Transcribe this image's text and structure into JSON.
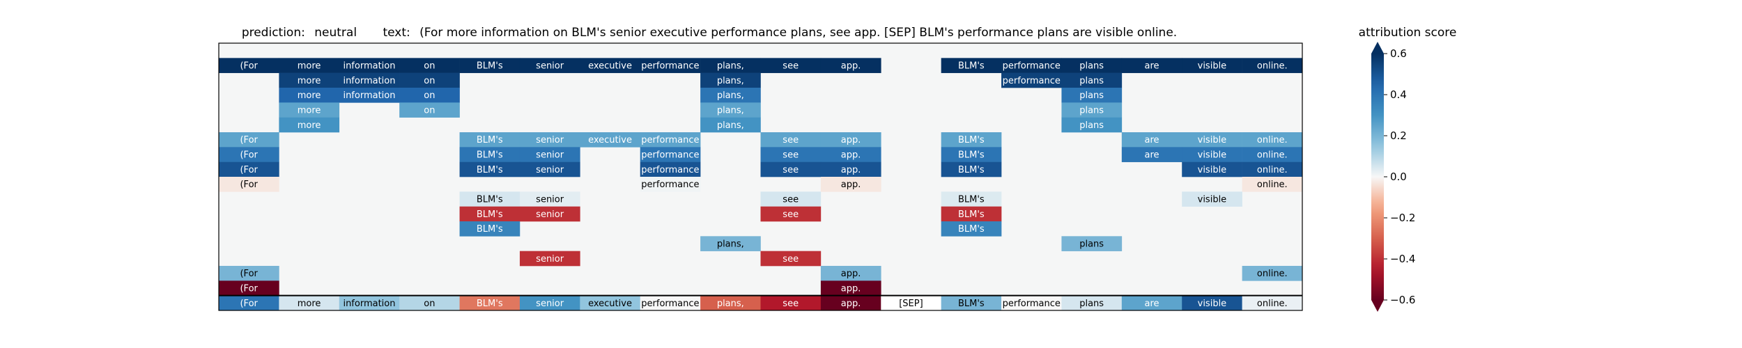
{
  "chart_data": {
    "type": "heatmap",
    "prediction_label": "prediction:",
    "prediction": "neutral",
    "text_label": "text:",
    "text": "(For more information on BLM's senior executive performance plans, see app. [SEP] BLM's performance plans are visible online.",
    "tokens": [
      "(For",
      "more",
      "information",
      "on",
      "BLM's",
      "senior",
      "executive",
      "performance",
      "plans,",
      "see",
      "app.",
      "[SEP]",
      "BLM's",
      "performance",
      "plans",
      "are",
      "visible",
      "online."
    ],
    "rows": [
      [
        0.6,
        0.6,
        0.6,
        0.6,
        0.6,
        0.6,
        0.6,
        0.6,
        0.6,
        0.6,
        0.6,
        null,
        0.6,
        0.6,
        0.6,
        0.6,
        0.6,
        0.6
      ],
      [
        null,
        0.55,
        0.55,
        0.55,
        null,
        null,
        null,
        null,
        0.55,
        null,
        null,
        null,
        null,
        0.55,
        0.55,
        null,
        null,
        null
      ],
      [
        null,
        0.45,
        0.45,
        0.45,
        null,
        null,
        null,
        null,
        0.4,
        null,
        null,
        null,
        null,
        null,
        0.4,
        null,
        null,
        null
      ],
      [
        null,
        0.25,
        null,
        0.25,
        null,
        null,
        null,
        null,
        0.25,
        null,
        null,
        null,
        null,
        null,
        0.25,
        null,
        null,
        null
      ],
      [
        null,
        0.3,
        null,
        null,
        null,
        null,
        null,
        null,
        0.3,
        null,
        null,
        null,
        null,
        null,
        0.3,
        null,
        null,
        null
      ],
      [
        0.25,
        null,
        null,
        null,
        0.25,
        0.25,
        0.25,
        0.25,
        null,
        0.25,
        0.25,
        null,
        0.25,
        null,
        null,
        0.25,
        0.25,
        0.25
      ],
      [
        0.4,
        null,
        null,
        null,
        0.4,
        0.4,
        null,
        0.4,
        null,
        0.4,
        0.4,
        null,
        0.4,
        null,
        null,
        0.4,
        0.4,
        0.4
      ],
      [
        0.5,
        null,
        null,
        null,
        0.5,
        0.5,
        null,
        0.5,
        null,
        0.5,
        0.5,
        null,
        0.5,
        null,
        null,
        null,
        0.5,
        0.5
      ],
      [
        -0.03,
        null,
        null,
        null,
        null,
        null,
        null,
        0.01,
        null,
        null,
        -0.03,
        null,
        null,
        null,
        null,
        null,
        null,
        -0.03
      ],
      [
        null,
        null,
        null,
        null,
        0.05,
        0.03,
        null,
        null,
        null,
        0.05,
        null,
        null,
        0.04,
        null,
        null,
        null,
        0.05,
        null
      ],
      [
        null,
        null,
        null,
        null,
        -0.4,
        -0.4,
        null,
        null,
        null,
        -0.4,
        null,
        null,
        -0.4,
        null,
        null,
        null,
        null,
        null
      ],
      [
        null,
        null,
        null,
        null,
        0.35,
        null,
        null,
        null,
        null,
        null,
        null,
        null,
        0.35,
        null,
        null,
        null,
        null,
        null
      ],
      [
        null,
        null,
        null,
        null,
        null,
        null,
        null,
        null,
        0.2,
        null,
        null,
        null,
        null,
        null,
        0.2,
        null,
        null,
        null
      ],
      [
        null,
        null,
        null,
        null,
        null,
        -0.4,
        null,
        null,
        null,
        -0.4,
        null,
        null,
        null,
        null,
        null,
        null,
        null,
        null
      ],
      [
        0.2,
        null,
        null,
        null,
        null,
        null,
        null,
        null,
        null,
        null,
        0.2,
        null,
        null,
        null,
        null,
        null,
        null,
        0.2
      ],
      [
        -0.6,
        null,
        null,
        null,
        null,
        null,
        null,
        null,
        null,
        null,
        -0.6,
        null,
        null,
        null,
        null,
        null,
        null,
        null
      ]
    ],
    "summary_row": [
      0.4,
      0.05,
      0.15,
      0.1,
      -0.25,
      0.3,
      0.15,
      0.0,
      -0.3,
      -0.45,
      -0.65,
      0.0,
      0.2,
      0.0,
      0.05,
      0.25,
      0.5,
      0.02
    ],
    "colorbar": {
      "title": "attribution score",
      "range": [
        -0.6,
        0.6
      ],
      "ticks": [
        -0.6,
        -0.4,
        -0.2,
        0.0,
        0.2,
        0.4,
        0.6
      ],
      "tick_labels": [
        "−0.6",
        "−0.4",
        "−0.2",
        "0.0",
        "0.2",
        "0.4",
        "0.6"
      ],
      "colormap": "RdBu"
    }
  }
}
